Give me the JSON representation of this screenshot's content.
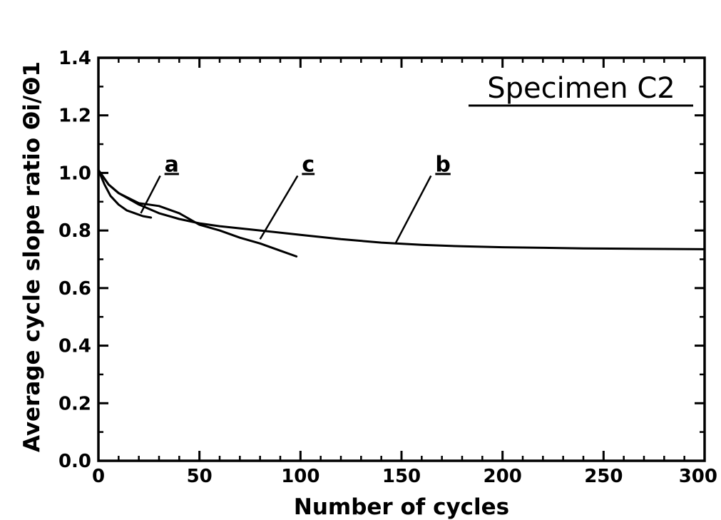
{
  "chart_data": {
    "type": "line",
    "title": "",
    "annotation": "Specimen C2",
    "xlabel": "Number of cycles",
    "ylabel": "Average cycle slope ratio Θi/Θ1",
    "xlim": [
      0,
      300
    ],
    "ylim": [
      0.0,
      1.4
    ],
    "x_ticks": [
      0,
      50,
      100,
      150,
      200,
      250,
      300
    ],
    "y_ticks": [
      0.0,
      0.2,
      0.4,
      0.6,
      0.8,
      1.0,
      1.2,
      1.4
    ],
    "x_tick_labels": [
      "0",
      "50",
      "100",
      "150",
      "200",
      "250",
      "300"
    ],
    "y_tick_labels": [
      "0.0",
      "0.2",
      "0.4",
      "0.6",
      "0.8",
      "1.0",
      "1.2",
      "1.4"
    ],
    "grid": false,
    "legend": "none",
    "series": [
      {
        "name": "a",
        "x": [
          0,
          3,
          6,
          10,
          14,
          18,
          22,
          26
        ],
        "y": [
          1.01,
          0.96,
          0.92,
          0.89,
          0.87,
          0.86,
          0.85,
          0.845
        ],
        "label_anchor": [
          21,
          0.86
        ],
        "label_pos": [
          32,
          1.0
        ]
      },
      {
        "name": "b",
        "x": [
          0,
          5,
          10,
          20,
          30,
          40,
          50,
          60,
          80,
          100,
          120,
          140,
          160,
          180,
          200,
          220,
          240,
          260,
          280,
          300
        ],
        "y": [
          1.01,
          0.96,
          0.93,
          0.89,
          0.86,
          0.84,
          0.825,
          0.815,
          0.8,
          0.785,
          0.77,
          0.758,
          0.75,
          0.745,
          0.742,
          0.74,
          0.738,
          0.737,
          0.736,
          0.735
        ],
        "label_anchor": [
          147,
          0.755
        ],
        "label_pos": [
          166,
          1.0
        ]
      },
      {
        "name": "c",
        "x": [
          0,
          5,
          10,
          20,
          30,
          40,
          50,
          60,
          70,
          80,
          90,
          98
        ],
        "y": [
          1.01,
          0.96,
          0.93,
          0.895,
          0.885,
          0.86,
          0.82,
          0.8,
          0.775,
          0.755,
          0.73,
          0.71
        ],
        "label_anchor": [
          80,
          0.77
        ],
        "label_pos": [
          100,
          1.0
        ]
      }
    ]
  }
}
